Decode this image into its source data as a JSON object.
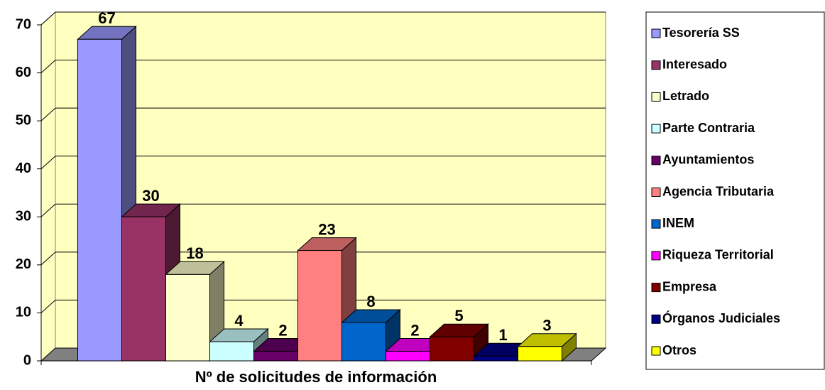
{
  "chart_data": {
    "type": "bar3d",
    "x_label": "Nº de solicitudes de información",
    "ylim": [
      0,
      70
    ],
    "yticks": [
      0,
      10,
      20,
      30,
      40,
      50,
      60,
      70
    ],
    "grid": true,
    "legend": "right",
    "series": [
      {
        "name": "Tesorería SS",
        "color": "#9999ff",
        "values": [
          67
        ]
      },
      {
        "name": "Interesado",
        "color": "#993366",
        "values": [
          30
        ]
      },
      {
        "name": "Letrado",
        "color": "#ffffcc",
        "values": [
          18
        ]
      },
      {
        "name": "Parte Contraria",
        "color": "#ccffff",
        "values": [
          4
        ]
      },
      {
        "name": "Ayuntamientos",
        "color": "#660066",
        "values": [
          2
        ]
      },
      {
        "name": "Agencia Tributaria",
        "color": "#ff8080",
        "values": [
          23
        ]
      },
      {
        "name": "INEM",
        "color": "#0066cc",
        "values": [
          8
        ]
      },
      {
        "name": "Riqueza Territorial",
        "color": "#ff00ff",
        "values": [
          2
        ]
      },
      {
        "name": "Empresa",
        "color": "#800000",
        "values": [
          5
        ]
      },
      {
        "name": "Órganos Judiciales",
        "color": "#000080",
        "values": [
          1
        ]
      },
      {
        "name": "Otros",
        "color": "#ffff00",
        "values": [
          3
        ]
      }
    ]
  }
}
